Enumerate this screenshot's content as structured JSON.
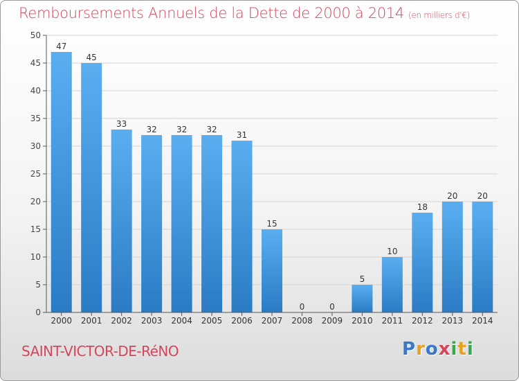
{
  "header": {
    "title": "Remboursements Annuels de la Dette de 2000 à 2014",
    "subtitle": "(en milliers d'€)"
  },
  "footer": {
    "town": "SAINT-VICTOR-DE-RéNO",
    "logo_letters": [
      "P",
      "r",
      "o",
      "x",
      "i",
      "t",
      "i"
    ],
    "logo_colors": [
      "#3a78c9",
      "#e8a020",
      "#3a78c9",
      "#d6455a",
      "#3aa84c",
      "#e8a020",
      "#3aa84c"
    ]
  },
  "chart_data": {
    "type": "bar",
    "categories": [
      "2000",
      "2001",
      "2002",
      "2003",
      "2004",
      "2005",
      "2006",
      "2007",
      "2008",
      "2009",
      "2010",
      "2011",
      "2012",
      "2013",
      "2014"
    ],
    "values": [
      47,
      45,
      33,
      32,
      32,
      32,
      31,
      15,
      0,
      0,
      5,
      10,
      18,
      20,
      20
    ],
    "yticks": [
      0,
      5,
      10,
      15,
      20,
      25,
      30,
      35,
      40,
      45,
      50
    ],
    "ylim": [
      0,
      50
    ],
    "grid": true,
    "bar_color_top": "#5aaef0",
    "bar_color_bottom": "#2a7bc4"
  }
}
